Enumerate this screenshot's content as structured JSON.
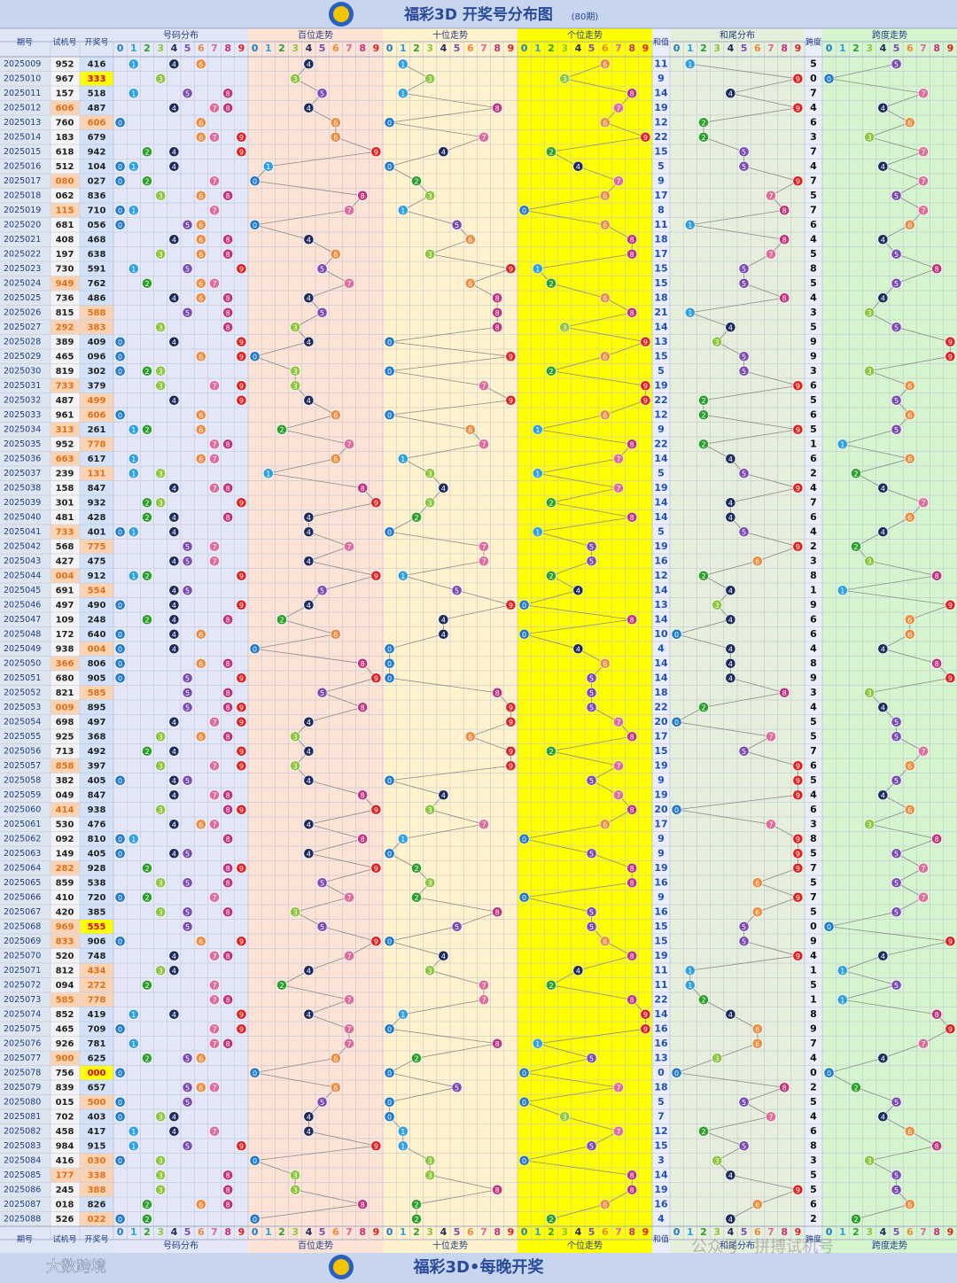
{
  "header": {
    "title": "福彩3D 开奖号分布图",
    "subtitle": "(80期)"
  },
  "columns": {
    "period": "期号",
    "test": "试机号",
    "draw": "开奖号",
    "distribution": "号码分布",
    "hundreds": "百位走势",
    "tens": "十位走势",
    "units": "个位走势",
    "sum": "和值",
    "sum_tail": "和尾分布",
    "span": "跨度",
    "span_trend": "跨度走势"
  },
  "digits": [
    0,
    1,
    2,
    3,
    4,
    5,
    6,
    7,
    8,
    9
  ],
  "digit_colors": [
    "#1f78c8",
    "#2fa0e0",
    "#2ca02c",
    "#8cc63f",
    "#1c2a5e",
    "#7b4bb5",
    "#f08a3c",
    "#e06a9a",
    "#c2307f",
    "#e02020"
  ],
  "rows": [
    [
      "2025009",
      "952",
      "416",
      11,
      5
    ],
    [
      "2025010",
      "967",
      "333",
      9,
      0
    ],
    [
      "2025011",
      "157",
      "518",
      14,
      7
    ],
    [
      "2025012",
      "606",
      "487",
      19,
      4
    ],
    [
      "2025013",
      "760",
      "606",
      12,
      6
    ],
    [
      "2025014",
      "183",
      "679",
      22,
      3
    ],
    [
      "2025015",
      "618",
      "942",
      15,
      7
    ],
    [
      "2025016",
      "512",
      "104",
      5,
      4
    ],
    [
      "2025017",
      "080",
      "027",
      9,
      7
    ],
    [
      "2025018",
      "062",
      "836",
      17,
      5
    ],
    [
      "2025019",
      "115",
      "710",
      8,
      7
    ],
    [
      "2025020",
      "681",
      "056",
      11,
      6
    ],
    [
      "2025021",
      "408",
      "468",
      18,
      4
    ],
    [
      "2025022",
      "197",
      "638",
      17,
      5
    ],
    [
      "2025023",
      "730",
      "591",
      15,
      8
    ],
    [
      "2025024",
      "949",
      "762",
      15,
      5
    ],
    [
      "2025025",
      "736",
      "486",
      18,
      4
    ],
    [
      "2025026",
      "815",
      "588",
      21,
      3
    ],
    [
      "2025027",
      "292",
      "383",
      14,
      5
    ],
    [
      "2025028",
      "389",
      "409",
      13,
      9
    ],
    [
      "2025029",
      "465",
      "096",
      15,
      9
    ],
    [
      "2025030",
      "819",
      "302",
      5,
      3
    ],
    [
      "2025031",
      "733",
      "379",
      19,
      6
    ],
    [
      "2025032",
      "487",
      "499",
      22,
      5
    ],
    [
      "2025033",
      "961",
      "606",
      12,
      6
    ],
    [
      "2025034",
      "313",
      "261",
      9,
      5
    ],
    [
      "2025035",
      "952",
      "778",
      22,
      1
    ],
    [
      "2025036",
      "663",
      "617",
      14,
      6
    ],
    [
      "2025037",
      "239",
      "131",
      5,
      2
    ],
    [
      "2025038",
      "158",
      "847",
      19,
      4
    ],
    [
      "2025039",
      "301",
      "932",
      14,
      7
    ],
    [
      "2025040",
      "481",
      "428",
      14,
      6
    ],
    [
      "2025041",
      "733",
      "401",
      5,
      4
    ],
    [
      "2025042",
      "568",
      "775",
      19,
      2
    ],
    [
      "2025043",
      "427",
      "475",
      16,
      3
    ],
    [
      "2025044",
      "004",
      "912",
      12,
      8
    ],
    [
      "2025045",
      "691",
      "554",
      14,
      1
    ],
    [
      "2025046",
      "497",
      "490",
      13,
      9
    ],
    [
      "2025047",
      "109",
      "248",
      14,
      6
    ],
    [
      "2025048",
      "172",
      "640",
      10,
      6
    ],
    [
      "2025049",
      "938",
      "004",
      4,
      4
    ],
    [
      "2025050",
      "366",
      "806",
      14,
      8
    ],
    [
      "2025051",
      "680",
      "905",
      14,
      9
    ],
    [
      "2025052",
      "821",
      "585",
      18,
      3
    ],
    [
      "2025053",
      "009",
      "895",
      22,
      4
    ],
    [
      "2025054",
      "698",
      "497",
      20,
      5
    ],
    [
      "2025055",
      "925",
      "368",
      17,
      5
    ],
    [
      "2025056",
      "713",
      "492",
      15,
      7
    ],
    [
      "2025057",
      "858",
      "397",
      19,
      6
    ],
    [
      "2025058",
      "382",
      "405",
      9,
      5
    ],
    [
      "2025059",
      "049",
      "847",
      19,
      4
    ],
    [
      "2025060",
      "414",
      "938",
      20,
      6
    ],
    [
      "2025061",
      "530",
      "476",
      17,
      3
    ],
    [
      "2025062",
      "092",
      "810",
      9,
      8
    ],
    [
      "2025063",
      "149",
      "405",
      9,
      5
    ],
    [
      "2025064",
      "282",
      "928",
      19,
      7
    ],
    [
      "2025065",
      "859",
      "538",
      16,
      5
    ],
    [
      "2025066",
      "410",
      "720",
      9,
      7
    ],
    [
      "2025067",
      "420",
      "385",
      16,
      5
    ],
    [
      "2025068",
      "969",
      "555",
      15,
      0
    ],
    [
      "2025069",
      "833",
      "906",
      15,
      9
    ],
    [
      "2025070",
      "520",
      "748",
      19,
      4
    ],
    [
      "2025071",
      "812",
      "434",
      11,
      1
    ],
    [
      "2025072",
      "094",
      "272",
      11,
      5
    ],
    [
      "2025073",
      "585",
      "778",
      22,
      1
    ],
    [
      "2025074",
      "852",
      "419",
      14,
      8
    ],
    [
      "2025075",
      "465",
      "709",
      16,
      9
    ],
    [
      "2025076",
      "926",
      "781",
      16,
      7
    ],
    [
      "2025077",
      "900",
      "625",
      13,
      4
    ],
    [
      "2025078",
      "756",
      "000",
      0,
      0
    ],
    [
      "2025079",
      "839",
      "657",
      18,
      2
    ],
    [
      "2025080",
      "015",
      "500",
      5,
      5
    ],
    [
      "2025081",
      "702",
      "403",
      7,
      4
    ],
    [
      "2025082",
      "458",
      "417",
      12,
      6
    ],
    [
      "2025083",
      "984",
      "915",
      15,
      8
    ],
    [
      "2025084",
      "416",
      "030",
      3,
      3
    ],
    [
      "2025085",
      "177",
      "338",
      14,
      5
    ],
    [
      "2025086",
      "245",
      "388",
      19,
      5
    ],
    [
      "2025087",
      "018",
      "826",
      16,
      6
    ],
    [
      "2025088",
      "526",
      "022",
      4,
      2
    ]
  ],
  "footer": {
    "slogan": "福彩3D•每晚开奖",
    "brand": "大数跨境",
    "watermark": "公众号 · 拼搏试机号"
  }
}
